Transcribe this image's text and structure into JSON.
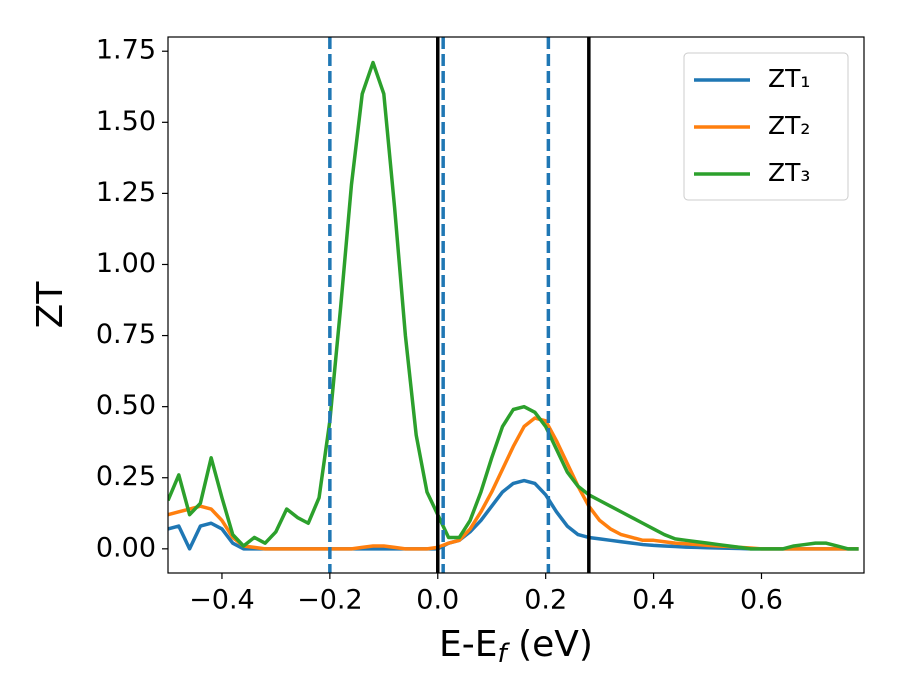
{
  "chart_data": {
    "type": "line",
    "xlabel": [
      "E-E",
      "f",
      " (eV)"
    ],
    "ylabel": "ZT",
    "x": [
      -0.5,
      -0.48,
      -0.46,
      -0.44,
      -0.42,
      -0.4,
      -0.38,
      -0.36,
      -0.34,
      -0.32,
      -0.3,
      -0.28,
      -0.26,
      -0.24,
      -0.22,
      -0.2,
      -0.18,
      -0.16,
      -0.14,
      -0.12,
      -0.1,
      -0.08,
      -0.06,
      -0.04,
      -0.02,
      0.0,
      0.02,
      0.04,
      0.06,
      0.08,
      0.1,
      0.12,
      0.14,
      0.16,
      0.18,
      0.2,
      0.22,
      0.24,
      0.26,
      0.28,
      0.3,
      0.32,
      0.34,
      0.36,
      0.38,
      0.4,
      0.42,
      0.44,
      0.46,
      0.48,
      0.5,
      0.52,
      0.54,
      0.56,
      0.58,
      0.6,
      0.62,
      0.64,
      0.66,
      0.68,
      0.7,
      0.72,
      0.74,
      0.76,
      0.78
    ],
    "series": [
      {
        "name": "ZT₁",
        "color": "#1f77b4",
        "values": [
          0.07,
          0.08,
          0.0,
          0.08,
          0.09,
          0.07,
          0.02,
          0.0,
          0.0,
          0.0,
          0.0,
          0.0,
          0.0,
          0.0,
          0.0,
          0.0,
          0.0,
          0.0,
          0.0,
          0.0,
          0.0,
          0.0,
          0.0,
          0.0,
          0.0,
          0.0,
          0.02,
          0.03,
          0.06,
          0.1,
          0.15,
          0.2,
          0.23,
          0.24,
          0.23,
          0.19,
          0.13,
          0.08,
          0.05,
          0.04,
          0.035,
          0.03,
          0.025,
          0.02,
          0.015,
          0.012,
          0.01,
          0.008,
          0.006,
          0.005,
          0.004,
          0.003,
          0.002,
          0.001,
          0.0,
          0.0,
          0.0,
          0.0,
          0.0,
          0.0,
          0.0,
          0.0,
          0.0,
          0.0,
          0.0
        ]
      },
      {
        "name": "ZT₂",
        "color": "#ff7f0e",
        "values": [
          0.12,
          0.13,
          0.14,
          0.15,
          0.14,
          0.1,
          0.04,
          0.01,
          0.005,
          0.0,
          0.0,
          0.0,
          0.0,
          0.0,
          0.0,
          0.0,
          0.0,
          0.0,
          0.005,
          0.01,
          0.01,
          0.005,
          0.0,
          0.0,
          0.0,
          0.005,
          0.02,
          0.03,
          0.07,
          0.13,
          0.2,
          0.28,
          0.36,
          0.43,
          0.46,
          0.45,
          0.38,
          0.3,
          0.22,
          0.15,
          0.1,
          0.07,
          0.05,
          0.04,
          0.03,
          0.03,
          0.025,
          0.02,
          0.018,
          0.015,
          0.012,
          0.01,
          0.008,
          0.005,
          0.003,
          0.0,
          0.0,
          0.0,
          0.0,
          0.0,
          0.0,
          0.0,
          0.0,
          0.0,
          0.0
        ]
      },
      {
        "name": "ZT₃",
        "color": "#2ca02c",
        "values": [
          0.17,
          0.26,
          0.12,
          0.16,
          0.32,
          0.18,
          0.05,
          0.01,
          0.04,
          0.02,
          0.06,
          0.14,
          0.11,
          0.09,
          0.18,
          0.45,
          0.85,
          1.28,
          1.6,
          1.71,
          1.6,
          1.2,
          0.75,
          0.4,
          0.2,
          0.12,
          0.04,
          0.04,
          0.1,
          0.2,
          0.32,
          0.43,
          0.49,
          0.5,
          0.48,
          0.43,
          0.35,
          0.27,
          0.22,
          0.19,
          0.17,
          0.15,
          0.13,
          0.11,
          0.09,
          0.07,
          0.05,
          0.035,
          0.03,
          0.025,
          0.02,
          0.015,
          0.01,
          0.005,
          0.0,
          0.0,
          0.0,
          0.0,
          0.01,
          0.015,
          0.02,
          0.02,
          0.01,
          0.0,
          0.0
        ]
      }
    ],
    "vlines": [
      {
        "x": -0.2,
        "color": "#1f77b4",
        "style": "dashed"
      },
      {
        "x": 0.01,
        "color": "#1f77b4",
        "style": "dashed"
      },
      {
        "x": 0.205,
        "color": "#1f77b4",
        "style": "dashed"
      },
      {
        "x": 0.0,
        "color": "#000000",
        "style": "solid"
      },
      {
        "x": 0.28,
        "color": "#000000",
        "style": "solid"
      }
    ],
    "xlim": [
      -0.5,
      0.79
    ],
    "ylim": [
      -0.085,
      1.8
    ],
    "xticks": [
      {
        "value": -0.4,
        "label": "−0.4"
      },
      {
        "value": -0.2,
        "label": "−0.2"
      },
      {
        "value": 0.0,
        "label": "0.0"
      },
      {
        "value": 0.2,
        "label": "0.2"
      },
      {
        "value": 0.4,
        "label": "0.4"
      },
      {
        "value": 0.6,
        "label": "0.6"
      }
    ],
    "yticks": [
      {
        "value": 0,
        "label": "0.00"
      },
      {
        "value": 0.25,
        "label": "0.25"
      },
      {
        "value": 0.5,
        "label": "0.50"
      },
      {
        "value": 0.75,
        "label": "0.75"
      },
      {
        "value": 1.0,
        "label": "1.00"
      },
      {
        "value": 1.25,
        "label": "1.25"
      },
      {
        "value": 1.5,
        "label": "1.50"
      },
      {
        "value": 1.75,
        "label": "1.75"
      }
    ],
    "legend": "upper right",
    "grid": false
  }
}
